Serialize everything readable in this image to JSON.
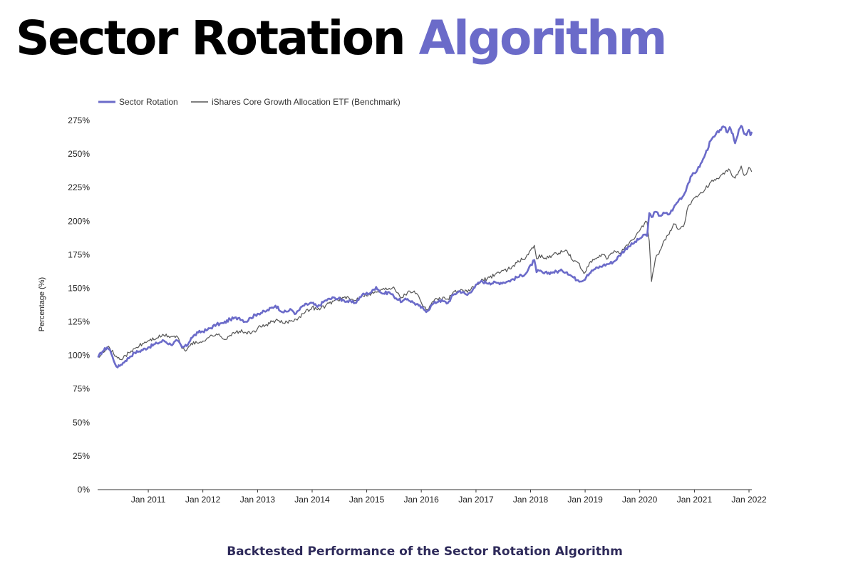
{
  "header": {
    "title_part1": "Sector Rotation",
    "title_part2": "Algorithm"
  },
  "caption": "Backtested Performance of the Sector Rotation Algorithm",
  "colors": {
    "accent": "#6b6bc9",
    "strategy": "#6b6bc9",
    "benchmark": "#555555",
    "axis": "#333333"
  },
  "chart_data": {
    "type": "line",
    "xlabel": "",
    "ylabel": "Percentage (%)",
    "ylim": [
      0,
      275
    ],
    "yticks": [
      0,
      25,
      50,
      75,
      100,
      125,
      150,
      175,
      200,
      225,
      250,
      275
    ],
    "ytick_format": "%",
    "xlim": [
      "2010-02-01",
      "2022-01-20"
    ],
    "xticks": [
      {
        "date": "2011-01-01",
        "label": "Jan 2011"
      },
      {
        "date": "2012-01-01",
        "label": "Jan 2012"
      },
      {
        "date": "2013-01-01",
        "label": "Jan 2013"
      },
      {
        "date": "2014-01-01",
        "label": "Jan 2014"
      },
      {
        "date": "2015-01-01",
        "label": "Jan 2015"
      },
      {
        "date": "2016-01-01",
        "label": "Jan 2016"
      },
      {
        "date": "2017-01-01",
        "label": "Jan 2017"
      },
      {
        "date": "2018-01-01",
        "label": "Jan 2018"
      },
      {
        "date": "2019-01-01",
        "label": "Jan 2019"
      },
      {
        "date": "2020-01-01",
        "label": "Jan 2020"
      },
      {
        "date": "2021-01-01",
        "label": "Jan 2021"
      },
      {
        "date": "2022-01-01",
        "label": "Jan 2022"
      }
    ],
    "grid": false,
    "legend_position": "top-left",
    "series": [
      {
        "name": "Sector Rotation",
        "points": [
          [
            "2010-02-01",
            99
          ],
          [
            "2010-03-01",
            103
          ],
          [
            "2010-04-01",
            106
          ],
          [
            "2010-04-20",
            104
          ],
          [
            "2010-05-15",
            96
          ],
          [
            "2010-06-10",
            91
          ],
          [
            "2010-07-01",
            93
          ],
          [
            "2010-08-01",
            96
          ],
          [
            "2010-09-01",
            99
          ],
          [
            "2010-10-01",
            102
          ],
          [
            "2010-11-01",
            103
          ],
          [
            "2011-01-01",
            106
          ],
          [
            "2011-03-01",
            109
          ],
          [
            "2011-04-15",
            111
          ],
          [
            "2011-06-01",
            108
          ],
          [
            "2011-07-15",
            111
          ],
          [
            "2011-08-15",
            106
          ],
          [
            "2011-09-15",
            107
          ],
          [
            "2011-10-15",
            113
          ],
          [
            "2011-12-01",
            117
          ],
          [
            "2012-02-01",
            119
          ],
          [
            "2012-04-01",
            123
          ],
          [
            "2012-05-20",
            124
          ],
          [
            "2012-07-01",
            127
          ],
          [
            "2012-09-01",
            128
          ],
          [
            "2012-10-15",
            125
          ],
          [
            "2012-11-15",
            128
          ],
          [
            "2013-01-01",
            131
          ],
          [
            "2013-03-01",
            133
          ],
          [
            "2013-05-01",
            137
          ],
          [
            "2013-06-25",
            132
          ],
          [
            "2013-08-15",
            134
          ],
          [
            "2013-09-15",
            131
          ],
          [
            "2013-11-01",
            137
          ],
          [
            "2014-01-01",
            139
          ],
          [
            "2014-02-05",
            136
          ],
          [
            "2014-04-01",
            141
          ],
          [
            "2014-06-01",
            143
          ],
          [
            "2014-08-01",
            141
          ],
          [
            "2014-10-15",
            139
          ],
          [
            "2014-12-01",
            145
          ],
          [
            "2015-02-01",
            147
          ],
          [
            "2015-03-05",
            151
          ],
          [
            "2015-04-15",
            146
          ],
          [
            "2015-06-01",
            147
          ],
          [
            "2015-07-01",
            144
          ],
          [
            "2015-08-25",
            140
          ],
          [
            "2015-10-01",
            142
          ],
          [
            "2015-11-15",
            139
          ],
          [
            "2015-12-15",
            137
          ],
          [
            "2016-01-20",
            134
          ],
          [
            "2016-02-10",
            133
          ],
          [
            "2016-03-15",
            138
          ],
          [
            "2016-05-01",
            141
          ],
          [
            "2016-06-27",
            139
          ],
          [
            "2016-08-01",
            145
          ],
          [
            "2016-09-15",
            148
          ],
          [
            "2016-11-04",
            145
          ],
          [
            "2016-12-15",
            150
          ],
          [
            "2017-02-01",
            155
          ],
          [
            "2017-04-01",
            154
          ],
          [
            "2017-06-01",
            154
          ],
          [
            "2017-08-01",
            155
          ],
          [
            "2017-10-01",
            158
          ],
          [
            "2017-12-01",
            161
          ],
          [
            "2018-01-26",
            171
          ],
          [
            "2018-02-10",
            162
          ],
          [
            "2018-03-01",
            163
          ],
          [
            "2018-04-01",
            161
          ],
          [
            "2018-06-01",
            162
          ],
          [
            "2018-08-01",
            163
          ],
          [
            "2018-09-01",
            162
          ],
          [
            "2018-10-15",
            158
          ],
          [
            "2018-11-15",
            156
          ],
          [
            "2018-12-24",
            156
          ],
          [
            "2019-01-15",
            160
          ],
          [
            "2019-03-01",
            164
          ],
          [
            "2019-05-01",
            167
          ],
          [
            "2019-06-01",
            168
          ],
          [
            "2019-07-15",
            170
          ],
          [
            "2019-09-01",
            176
          ],
          [
            "2019-10-15",
            181
          ],
          [
            "2019-11-15",
            183
          ],
          [
            "2020-01-01",
            187
          ],
          [
            "2020-02-10",
            190
          ],
          [
            "2020-02-20",
            189
          ],
          [
            "2020-03-05",
            206
          ],
          [
            "2020-03-20",
            203
          ],
          [
            "2020-04-15",
            207
          ],
          [
            "2020-05-15",
            204
          ],
          [
            "2020-06-15",
            206
          ],
          [
            "2020-07-15",
            205
          ],
          [
            "2020-08-15",
            210
          ],
          [
            "2020-09-20",
            216
          ],
          [
            "2020-10-20",
            219
          ],
          [
            "2020-11-20",
            228
          ],
          [
            "2020-12-15",
            234
          ],
          [
            "2021-01-20",
            238
          ],
          [
            "2021-02-20",
            244
          ],
          [
            "2021-03-15",
            250
          ],
          [
            "2021-04-20",
            260
          ],
          [
            "2021-05-15",
            263
          ],
          [
            "2021-06-20",
            268
          ],
          [
            "2021-07-20",
            270
          ],
          [
            "2021-08-10",
            266
          ],
          [
            "2021-08-25",
            270
          ],
          [
            "2021-09-15",
            265
          ],
          [
            "2021-09-30",
            258
          ],
          [
            "2021-10-25",
            268
          ],
          [
            "2021-11-10",
            271
          ],
          [
            "2021-11-30",
            265
          ],
          [
            "2021-12-15",
            264
          ],
          [
            "2021-12-31",
            268
          ],
          [
            "2022-01-10",
            264
          ],
          [
            "2022-01-18",
            266
          ]
        ]
      },
      {
        "name": "iShares Core Growth Allocation ETF (Benchmark)",
        "points": [
          [
            "2010-02-01",
            99
          ],
          [
            "2010-03-01",
            103
          ],
          [
            "2010-04-01",
            106
          ],
          [
            "2010-04-20",
            105
          ],
          [
            "2010-05-15",
            101
          ],
          [
            "2010-06-10",
            98
          ],
          [
            "2010-07-01",
            97
          ],
          [
            "2010-08-01",
            100
          ],
          [
            "2010-09-01",
            102
          ],
          [
            "2010-10-01",
            105
          ],
          [
            "2010-11-01",
            107
          ],
          [
            "2011-01-01",
            111
          ],
          [
            "2011-03-01",
            113
          ],
          [
            "2011-04-15",
            115
          ],
          [
            "2011-06-01",
            114
          ],
          [
            "2011-07-15",
            114
          ],
          [
            "2011-08-15",
            105
          ],
          [
            "2011-09-15",
            104
          ],
          [
            "2011-10-15",
            109
          ],
          [
            "2011-12-01",
            109
          ],
          [
            "2012-02-01",
            113
          ],
          [
            "2012-04-01",
            116
          ],
          [
            "2012-05-20",
            112
          ],
          [
            "2012-07-01",
            115
          ],
          [
            "2012-09-01",
            118
          ],
          [
            "2012-10-15",
            117
          ],
          [
            "2012-11-15",
            116
          ],
          [
            "2013-01-01",
            120
          ],
          [
            "2013-03-01",
            123
          ],
          [
            "2013-05-01",
            126
          ],
          [
            "2013-06-25",
            124
          ],
          [
            "2013-08-15",
            126
          ],
          [
            "2013-09-15",
            127
          ],
          [
            "2013-11-01",
            131
          ],
          [
            "2014-01-01",
            136
          ],
          [
            "2014-02-05",
            134
          ],
          [
            "2014-04-01",
            137
          ],
          [
            "2014-06-01",
            141
          ],
          [
            "2014-08-01",
            143
          ],
          [
            "2014-10-15",
            141
          ],
          [
            "2014-12-01",
            145
          ],
          [
            "2015-02-01",
            146
          ],
          [
            "2015-03-05",
            147
          ],
          [
            "2015-04-15",
            149
          ],
          [
            "2015-06-01",
            150
          ],
          [
            "2015-07-01",
            151
          ],
          [
            "2015-08-25",
            143
          ],
          [
            "2015-10-01",
            147
          ],
          [
            "2015-11-15",
            148
          ],
          [
            "2015-12-15",
            144
          ],
          [
            "2016-01-20",
            136
          ],
          [
            "2016-02-10",
            134
          ],
          [
            "2016-03-15",
            140
          ],
          [
            "2016-05-01",
            143
          ],
          [
            "2016-06-27",
            142
          ],
          [
            "2016-08-01",
            147
          ],
          [
            "2016-09-15",
            148
          ],
          [
            "2016-11-04",
            147
          ],
          [
            "2016-12-15",
            151
          ],
          [
            "2017-02-01",
            155
          ],
          [
            "2017-04-01",
            158
          ],
          [
            "2017-06-01",
            162
          ],
          [
            "2017-08-01",
            164
          ],
          [
            "2017-10-01",
            169
          ],
          [
            "2017-12-01",
            173
          ],
          [
            "2018-01-26",
            182
          ],
          [
            "2018-02-10",
            172
          ],
          [
            "2018-03-01",
            175
          ],
          [
            "2018-04-01",
            172
          ],
          [
            "2018-06-01",
            175
          ],
          [
            "2018-08-01",
            177
          ],
          [
            "2018-09-01",
            178
          ],
          [
            "2018-10-15",
            170
          ],
          [
            "2018-11-15",
            169
          ],
          [
            "2018-12-24",
            161
          ],
          [
            "2019-01-15",
            166
          ],
          [
            "2019-03-01",
            171
          ],
          [
            "2019-05-01",
            175
          ],
          [
            "2019-06-01",
            172
          ],
          [
            "2019-07-15",
            178
          ],
          [
            "2019-09-01",
            177
          ],
          [
            "2019-10-15",
            182
          ],
          [
            "2019-11-15",
            186
          ],
          [
            "2020-01-01",
            193
          ],
          [
            "2020-02-10",
            200
          ],
          [
            "2020-02-20",
            199
          ],
          [
            "2020-03-05",
            185
          ],
          [
            "2020-03-20",
            155
          ],
          [
            "2020-04-15",
            172
          ],
          [
            "2020-05-15",
            178
          ],
          [
            "2020-06-15",
            186
          ],
          [
            "2020-07-15",
            190
          ],
          [
            "2020-08-15",
            198
          ],
          [
            "2020-09-20",
            194
          ],
          [
            "2020-10-20",
            196
          ],
          [
            "2020-11-20",
            211
          ],
          [
            "2020-12-15",
            215
          ],
          [
            "2021-01-20",
            218
          ],
          [
            "2021-02-20",
            221
          ],
          [
            "2021-03-15",
            224
          ],
          [
            "2021-04-20",
            229
          ],
          [
            "2021-05-15",
            231
          ],
          [
            "2021-06-20",
            233
          ],
          [
            "2021-07-20",
            235
          ],
          [
            "2021-08-10",
            237
          ],
          [
            "2021-08-25",
            238
          ],
          [
            "2021-09-15",
            233
          ],
          [
            "2021-09-30",
            232
          ],
          [
            "2021-10-25",
            237
          ],
          [
            "2021-11-10",
            241
          ],
          [
            "2021-11-30",
            234
          ],
          [
            "2021-12-15",
            235
          ],
          [
            "2021-12-31",
            240
          ],
          [
            "2022-01-10",
            239
          ],
          [
            "2022-01-18",
            237
          ]
        ]
      }
    ]
  }
}
